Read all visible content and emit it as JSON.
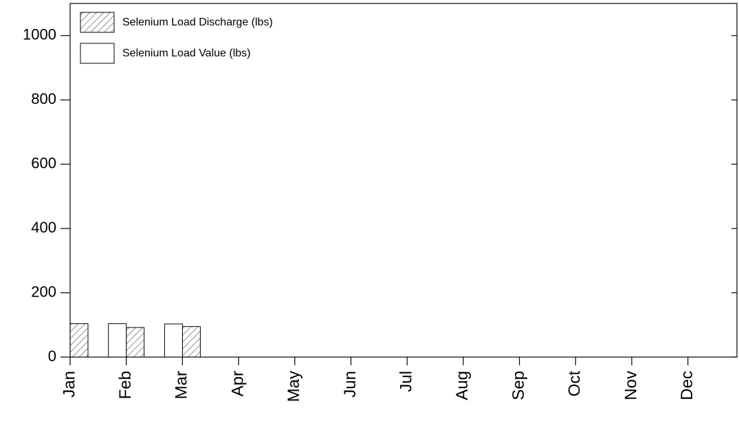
{
  "chart_data": {
    "type": "bar",
    "categories": [
      "Jan",
      "Feb",
      "Mar",
      "Apr",
      "May",
      "Jun",
      "Jul",
      "Aug",
      "Sep",
      "Oct",
      "Nov",
      "Dec"
    ],
    "series": [
      {
        "name": "Selenium Load Discharge (lbs)",
        "color": "#ffffff",
        "hatch": true,
        "values": [
          104,
          92,
          95,
          null,
          null,
          null,
          null,
          null,
          null,
          null,
          null,
          null
        ]
      },
      {
        "name": "Selenium Load Value (lbs)",
        "color": "#ffffff",
        "hatch": false,
        "values": [
          null,
          104,
          103,
          null,
          null,
          null,
          null,
          null,
          null,
          null,
          null,
          null
        ]
      }
    ],
    "ylim": [
      0,
      1100
    ],
    "yticks": [
      0,
      200,
      400,
      600,
      800,
      1000
    ],
    "grid": false,
    "legend": "top-left"
  }
}
